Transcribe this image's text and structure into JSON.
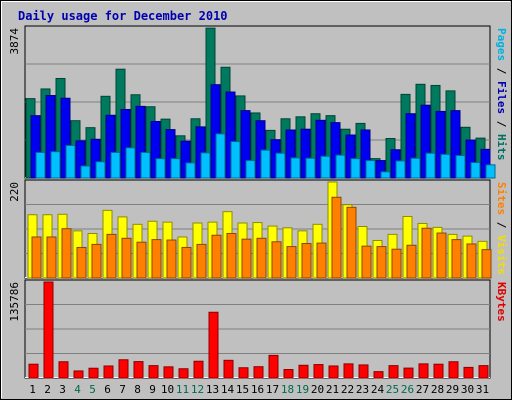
{
  "chart_data": {
    "type": "bar",
    "title": "Daily usage for December 2010",
    "title_color": "#0000b0",
    "background": "#c0c0c0",
    "weekend_label_color": "#006a4e",
    "days": [
      "1",
      "2",
      "3",
      "4",
      "5",
      "6",
      "7",
      "8",
      "9",
      "10",
      "11",
      "12",
      "13",
      "14",
      "15",
      "16",
      "17",
      "18",
      "19",
      "20",
      "21",
      "22",
      "23",
      "24",
      "25",
      "26",
      "27",
      "28",
      "29",
      "30",
      "31"
    ],
    "weekend_days": [
      "4",
      "5",
      "11",
      "12",
      "18",
      "19",
      "25",
      "26"
    ],
    "panels": [
      {
        "id": "hits-panel",
        "ymax_label": "3874",
        "ymax": 3874,
        "legend": [
          {
            "text": "Pages",
            "color": "#00b0e0"
          },
          {
            "text": " / ",
            "color": "#000000"
          },
          {
            "text": "Files",
            "color": "#0000b0"
          },
          {
            "text": " / ",
            "color": "#000000"
          },
          {
            "text": "Hits",
            "color": "#007060"
          }
        ],
        "series": [
          {
            "name": "Hits",
            "color": "#007a5e",
            "values": [
              2050,
              2300,
              2570,
              1480,
              1300,
              2110,
              2810,
              2150,
              1840,
              1520,
              1090,
              1530,
              3870,
              2860,
              2120,
              1680,
              1230,
              1530,
              1580,
              1660,
              1610,
              1260,
              1410,
              500,
              1020,
              2160,
              2420,
              2390,
              2250,
              1310,
              1030
            ]
          },
          {
            "name": "Files",
            "color": "#0000f0",
            "values": [
              1610,
              2130,
              2060,
              960,
              1000,
              1620,
              1770,
              1850,
              1460,
              1250,
              950,
              1320,
              2410,
              2220,
              1740,
              1480,
              990,
              1240,
              1260,
              1490,
              1430,
              1110,
              1240,
              450,
              730,
              1660,
              1880,
              1720,
              1740,
              980,
              740
            ]
          },
          {
            "name": "Pages",
            "color": "#00c0ff",
            "values": [
              660,
              680,
              840,
              310,
              420,
              660,
              780,
              660,
              500,
              500,
              390,
              650,
              1140,
              940,
              450,
              720,
              640,
              520,
              510,
              560,
              590,
              500,
              450,
              160,
              440,
              510,
              640,
              610,
              580,
              400,
              340
            ]
          }
        ]
      },
      {
        "id": "visits-panel",
        "ymax_label": "220",
        "ymax": 220,
        "legend": [
          {
            "text": "Sites",
            "color": "#ff8000"
          },
          {
            "text": " / ",
            "color": "#000000"
          },
          {
            "text": "Visits",
            "color": "#f0e000"
          }
        ],
        "series": [
          {
            "name": "Visits",
            "color": "#ffff00",
            "values": [
              145,
              145,
              146,
              108,
              102,
              155,
              140,
              123,
              130,
              128,
              94,
              126,
              128,
              152,
              126,
              127,
              119,
              115,
              108,
              123,
              220,
              168,
              118,
              86,
              100,
              141,
              125,
              116,
              100,
              96,
              84
            ]
          },
          {
            "name": "Sites",
            "color": "#ff8000",
            "values": [
              94,
              94,
              113,
              70,
              77,
              100,
              91,
              82,
              88,
              87,
              70,
              77,
              98,
              102,
              89,
              91,
              83,
              72,
              79,
              80,
              185,
              162,
              73,
              72,
              66,
              75,
              114,
              103,
              88,
              78,
              65
            ]
          }
        ]
      },
      {
        "id": "kbytes-panel",
        "ymax_label": "135786",
        "ymax": 135786,
        "legend": [
          {
            "text": "KBytes",
            "color": "#e00000"
          }
        ],
        "series": [
          {
            "name": "KBytes",
            "color": "#ff0000",
            "values": [
              19500,
              135786,
              23000,
              10000,
              13800,
              17000,
              25800,
              23200,
              17500,
              15800,
              13100,
              23700,
              93000,
              25000,
              14500,
              16000,
              32000,
              12000,
              18000,
              19000,
              17000,
              20000,
              18500,
              9000,
              17500,
              14000,
              20000,
              19500,
              23000,
              15000,
              17500
            ]
          }
        ]
      }
    ]
  }
}
